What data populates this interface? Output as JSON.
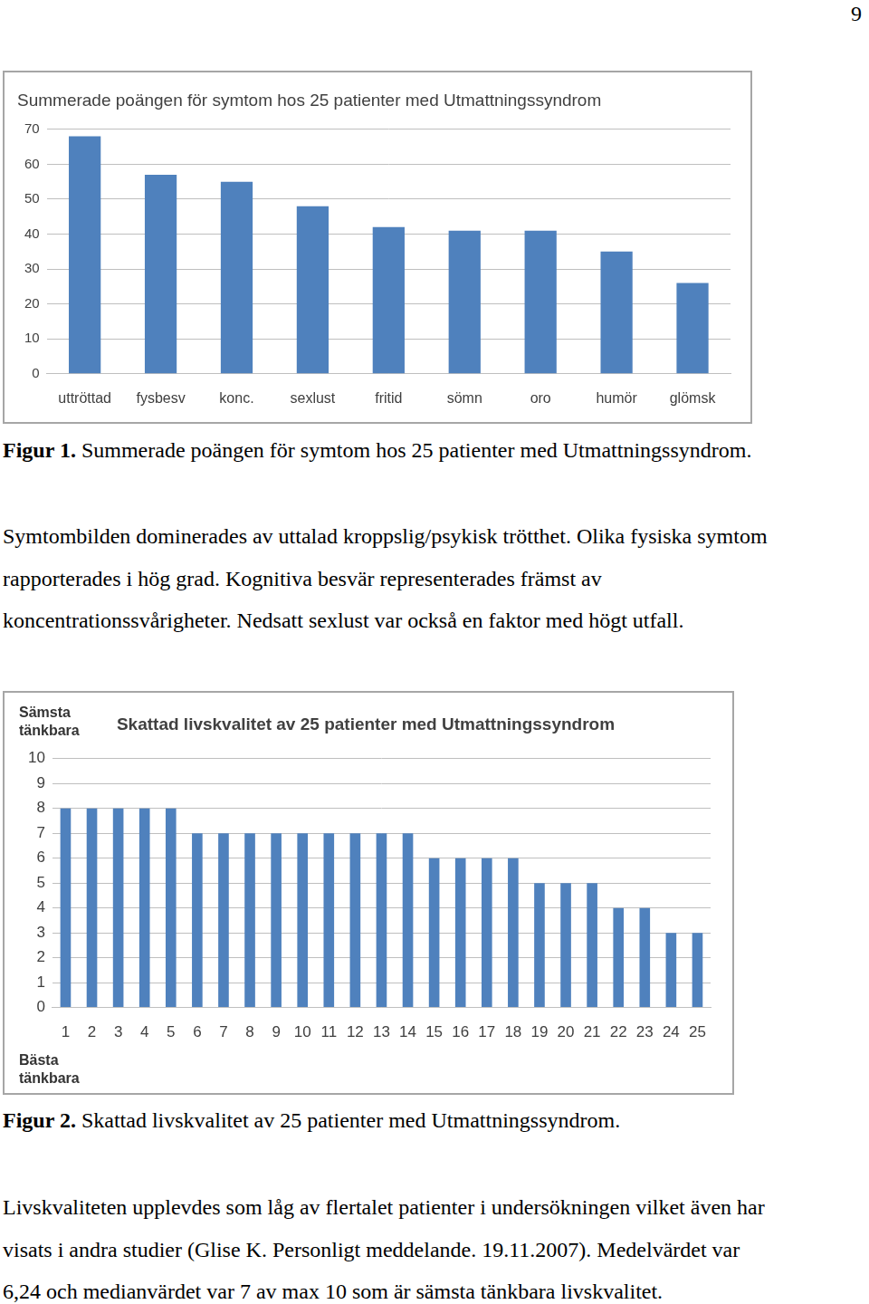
{
  "page_number": "9",
  "chart_data": [
    {
      "type": "bar",
      "title": "Summerade poängen för symtom hos 25 patienter med Utmattningssyndrom",
      "categories": [
        "uttröttad",
        "fysbesv",
        "konc.",
        "sexlust",
        "fritid",
        "sömn",
        "oro",
        "humör",
        "glömsk"
      ],
      "values": [
        68,
        57,
        55,
        48,
        42,
        41,
        41,
        35,
        26
      ],
      "color": "#4f81bd",
      "ylim": [
        0,
        70
      ],
      "yticks": [
        0,
        10,
        20,
        30,
        40,
        50,
        60,
        70
      ],
      "grid": true
    },
    {
      "type": "bar",
      "title": "Skattad livskvalitet av 25 patienter med Utmattningssyndrom",
      "annotations": [
        "Sämsta tänkbara",
        "Bästa tänkbara"
      ],
      "categories": [
        "1",
        "2",
        "3",
        "4",
        "5",
        "6",
        "7",
        "8",
        "9",
        "10",
        "11",
        "12",
        "13",
        "14",
        "15",
        "16",
        "17",
        "18",
        "19",
        "20",
        "21",
        "22",
        "23",
        "24",
        "25"
      ],
      "values": [
        8,
        8,
        8,
        8,
        8,
        7,
        7,
        7,
        7,
        7,
        7,
        7,
        7,
        7,
        6,
        6,
        6,
        6,
        5,
        5,
        5,
        4,
        4,
        3,
        3
      ],
      "color": "#4f81bd",
      "ylim": [
        0,
        10
      ],
      "yticks": [
        0,
        1,
        2,
        3,
        4,
        5,
        6,
        7,
        8,
        9,
        10
      ],
      "grid": true
    }
  ],
  "captions": [
    {
      "label": "Figur 1.",
      "text": "Summerade poängen för symtom hos 25 patienter med Utmattningssyndrom."
    },
    {
      "label": "Figur 2.",
      "text": "Skattad livskvalitet av 25 patienter med Utmattningssyndrom."
    }
  ],
  "paragraphs": [
    [
      "Symtombilden dominerades av uttalad kroppslig/psykisk trötthet. Olika fysiska symtom",
      "rapporterades i hög grad. Kognitiva besvär representerades främst av",
      "koncentrationssvårigheter. Nedsatt sexlust var också en faktor med högt utfall."
    ],
    [
      "Livskvaliteten upplevdes som låg av flertalet patienter i undersökningen vilket även har",
      "visats i andra studier (Glise K. Personligt meddelande. 19.11.2007). Medelvärdet var",
      "6,24 och medianvärdet var 7 av max 10 som är sämsta tänkbara livskvalitet."
    ]
  ]
}
